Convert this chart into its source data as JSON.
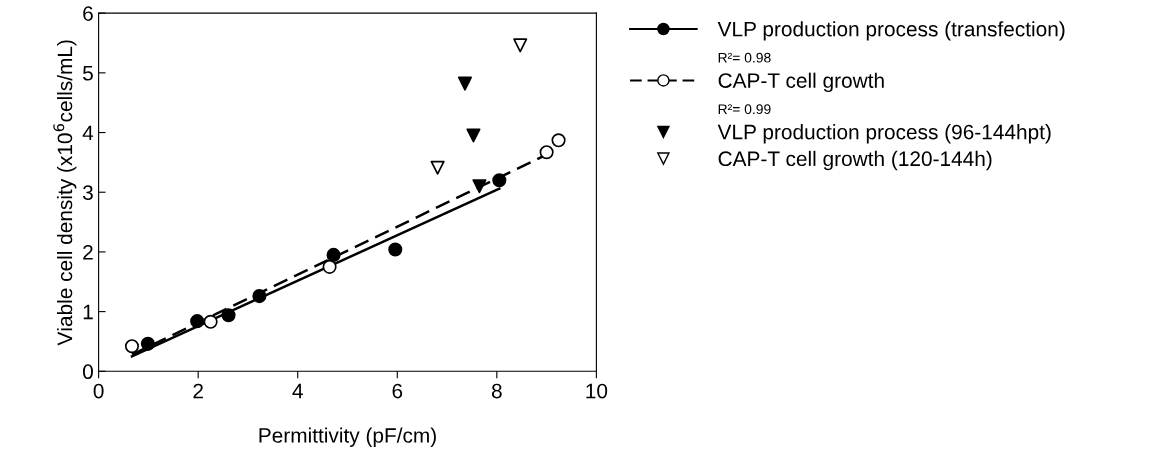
{
  "chart_data": {
    "type": "scatter",
    "xlabel": "Permittivity (pF/cm)",
    "ylabel": "Viable cell density (x10$^{6}$cells/mL)",
    "xlim": [
      0,
      10
    ],
    "xticks": [
      0,
      2,
      4,
      6,
      8,
      10
    ],
    "ylim": [
      0,
      6
    ],
    "yticks": [
      0,
      1,
      2,
      3,
      4,
      5,
      6
    ],
    "grid": false,
    "legend": "right",
    "series": [
      {
        "name": "VLP production process (transfection)",
        "marker": "circle",
        "color": "#000000",
        "x": [
          0.99,
          1.98,
          2.61,
          3.23,
          4.72,
          5.96,
          8.05
        ],
        "values": [
          0.46,
          0.84,
          0.94,
          1.26,
          1.95,
          2.04,
          3.2
        ]
      },
      {
        "type": "line",
        "line_style": "solid",
        "color": "#000000",
        "x": [
          0.67,
          8.05
        ],
        "values": [
          0.25,
          3.06
        ]
      },
      {
        "name": "CAP-T cell growth",
        "marker": "circle",
        "color": "#ffffff",
        "x": [
          0.67,
          2.25,
          4.64,
          9.0,
          9.24
        ],
        "values": [
          0.42,
          0.83,
          1.75,
          3.67,
          3.87
        ]
      },
      {
        "type": "line",
        "line_style": "dashed",
        "color": "#000000",
        "x": [
          0.67,
          9.0
        ],
        "values": [
          0.28,
          3.63
        ]
      },
      {
        "name": "VLP production process (96-144hpt)",
        "marker": "triangle",
        "color": "#000000",
        "x": [
          7.36,
          7.53,
          7.65
        ],
        "values": [
          4.82,
          3.95,
          3.1
        ]
      },
      {
        "name": "CAP-T cell growth (120-144h)",
        "marker": "triangle",
        "color": "#ffffff",
        "x": [
          6.81,
          8.47
        ],
        "values": [
          3.41,
          5.46
        ]
      }
    ],
    "annotations": [
      "R²= 0.98",
      "R²= 0.99"
    ]
  }
}
